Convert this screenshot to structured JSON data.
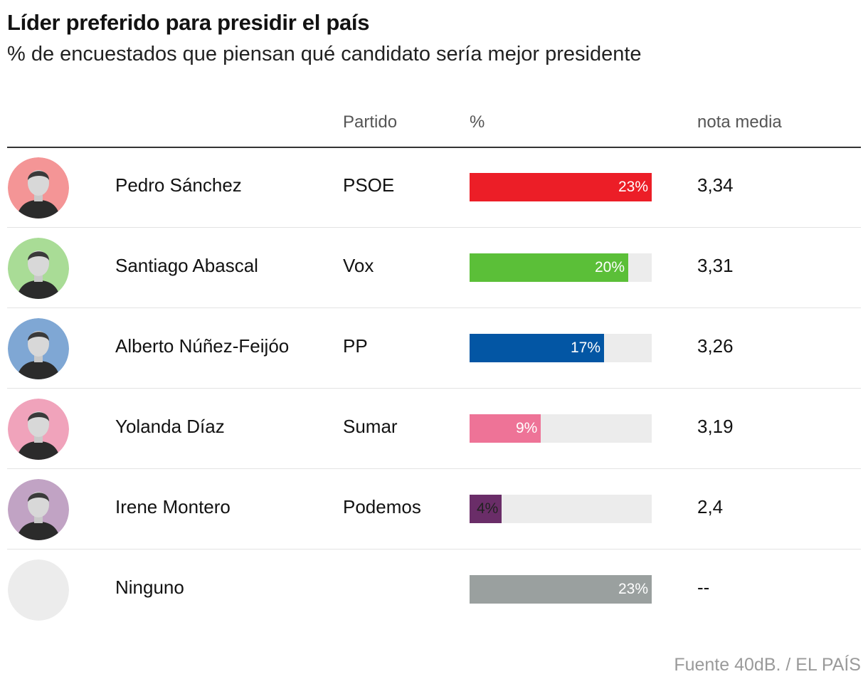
{
  "title": "Líder preferido para presidir el país",
  "subtitle": "% de encuestados que piensan qué candidato sería mejor presidente",
  "headers": {
    "party": "Partido",
    "percent": "%",
    "score": "nota media"
  },
  "source": "Fuente 40dB. / EL PAÍS",
  "chart_data": {
    "type": "table",
    "title": "Líder preferido para presidir el país",
    "subtitle": "% de encuestados que piensan qué candidato sería mejor presidente",
    "columns": [
      "",
      "Partido",
      "%",
      "nota media"
    ],
    "bar_max": 23,
    "rows": [
      {
        "name": "Pedro Sánchez",
        "party": "PSOE",
        "value": 23,
        "label": "23%",
        "score": "3,34",
        "color": "#ec1e27",
        "avatar_bg": "#f49596",
        "label_color": "#ffffff"
      },
      {
        "name": "Santiago Abascal",
        "party": "Vox",
        "value": 20,
        "label": "20%",
        "score": "3,31",
        "color": "#5bbf38",
        "avatar_bg": "#a9dc96",
        "label_color": "#ffffff"
      },
      {
        "name": "Alberto Núñez-Feijóo",
        "party": "PP",
        "value": 17,
        "label": "17%",
        "score": "3,26",
        "color": "#0356a4",
        "avatar_bg": "#7fa7d4",
        "label_color": "#ffffff"
      },
      {
        "name": "Yolanda Díaz",
        "party": "Sumar",
        "value": 9,
        "label": "9%",
        "score": "3,19",
        "color": "#ee7397",
        "avatar_bg": "#f0a3bb",
        "label_color": "#ffffff"
      },
      {
        "name": "Irene Montero",
        "party": "Podemos",
        "value": 4,
        "label": "4%",
        "score": "2,4",
        "color": "#6a2d68",
        "avatar_bg": "#c1a3c4",
        "label_color": "#222222"
      },
      {
        "name": "Ninguno",
        "party": "",
        "value": 23,
        "label": "23%",
        "score": "--",
        "color": "#9aa09f",
        "avatar_bg": "#ececec",
        "label_color": "#ffffff"
      }
    ]
  }
}
